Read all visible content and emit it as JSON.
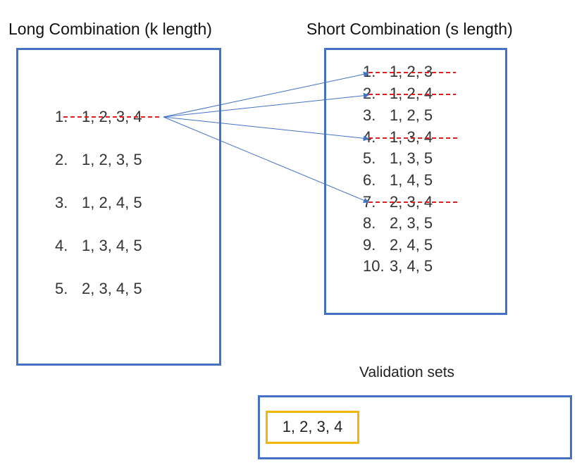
{
  "long": {
    "title": "Long Combination (k length)",
    "items": [
      {
        "num": "1.",
        "value": "1, 2, 3, 4"
      },
      {
        "num": "2.",
        "value": "1, 2, 3, 5"
      },
      {
        "num": "3.",
        "value": "1, 2, 4, 5"
      },
      {
        "num": "4.",
        "value": "1, 3, 4, 5"
      },
      {
        "num": "5.",
        "value": "2, 3, 4, 5"
      }
    ]
  },
  "short": {
    "title": "Short Combination (s length)",
    "items": [
      {
        "num": "1.",
        "value": "1, 2, 3"
      },
      {
        "num": "2.",
        "value": "1, 2, 4"
      },
      {
        "num": "3.",
        "value": "1, 2, 5"
      },
      {
        "num": "4.",
        "value": "1, 3, 4"
      },
      {
        "num": "5.",
        "value": "1, 3, 5"
      },
      {
        "num": "6.",
        "value": "1, 4, 5"
      },
      {
        "num": "7.",
        "value": "2, 3, 4"
      },
      {
        "num": "8.",
        "value": "2, 3, 5"
      },
      {
        "num": "9.",
        "value": "2, 4, 5"
      },
      {
        "num": "10.",
        "value": "3, 4, 5"
      }
    ]
  },
  "validation": {
    "title": "Validation sets",
    "sets": [
      "1, 2, 3, 4"
    ]
  },
  "colors": {
    "box_border": "#4472c4",
    "arrow": "#4472c4",
    "strike": "#e02020",
    "validation_border": "#f2b705"
  }
}
